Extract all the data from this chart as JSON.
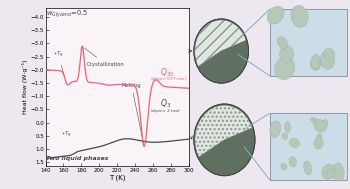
{
  "bg_color": "#ede8f0",
  "plot_bg": "#f8f4f8",
  "plot_xlim": [
    140,
    300
  ],
  "ylabel": "Heat flow (W·g⁻¹)",
  "xlabel": "T (K)",
  "melting_label": "Melting",
  "cryst_label": "Crystallization",
  "two_liquid": "Two liquid phases",
  "pink_color": "#f06070",
  "dark_color": "#484848",
  "sphere_color": "#8aa08a",
  "sphere_dark": "#607060",
  "box_bg": "#ccdde8",
  "box_edge": "#8899aa",
  "pore_fill": "#b8c8b8",
  "pore_edge": "#9aaa9a",
  "connect_line": "#88aac0",
  "xticks": [
    140,
    160,
    180,
    200,
    220,
    240,
    260,
    280,
    300
  ],
  "yticks": [
    -4.0,
    -3.5,
    -3.0,
    -2.5,
    -2.0,
    -1.5,
    -1.0,
    -0.5,
    0.0,
    0.5,
    1.0,
    1.5
  ]
}
